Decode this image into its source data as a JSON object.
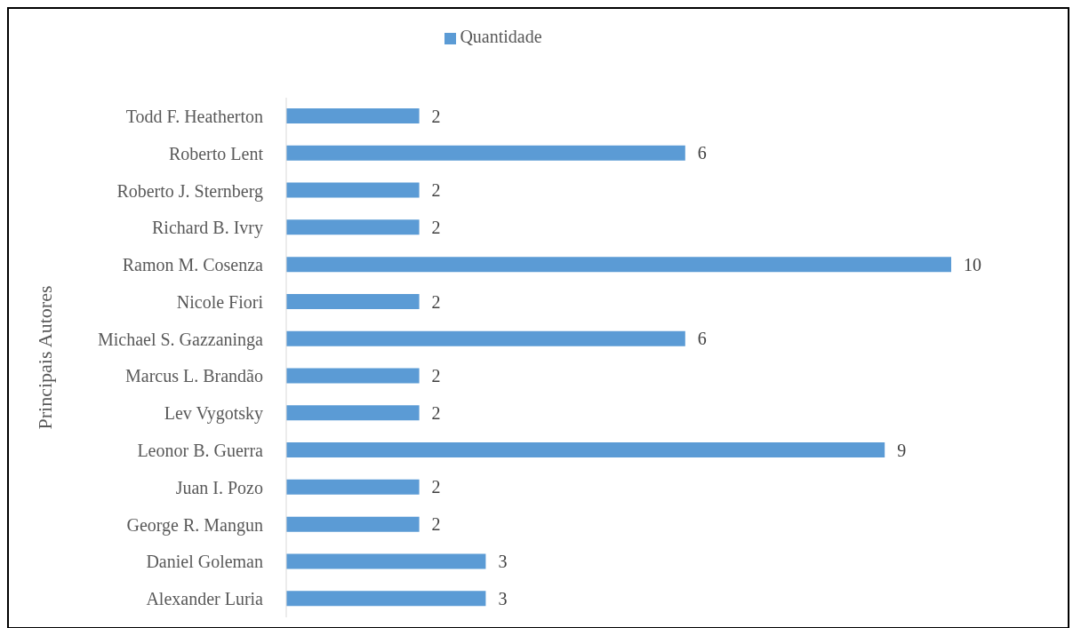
{
  "chart_data": {
    "type": "bar",
    "orientation": "horizontal",
    "ylabel": "Principais Autores",
    "categories": [
      "Todd F. Heatherton",
      "Roberto Lent",
      "Roberto J. Sternberg",
      "Richard B. Ivry",
      "Ramon M. Cosenza",
      "Nicole Fiori",
      "Michael S. Gazzaninga",
      "Marcus L. Brandão",
      "Lev Vygotsky",
      "Leonor B. Guerra",
      "Juan I. Pozo",
      "George R. Mangun",
      "Daniel Goleman",
      "Alexander Luria"
    ],
    "series": [
      {
        "name": "Quantidade",
        "color": "#5b9bd5",
        "values": [
          2,
          6,
          2,
          2,
          10,
          2,
          6,
          2,
          2,
          9,
          2,
          2,
          3,
          3
        ]
      }
    ],
    "data_labels": true,
    "legend": "top",
    "grid": false
  }
}
